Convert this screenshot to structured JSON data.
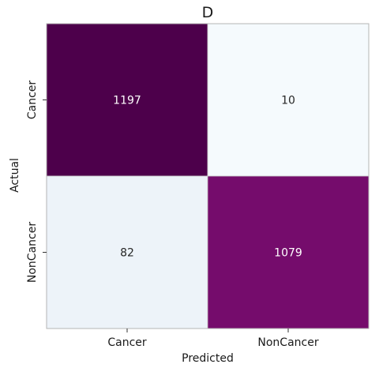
{
  "chart_data": {
    "type": "heatmap",
    "title": "D",
    "xlabel": "Predicted",
    "ylabel": "Actual",
    "x_categories": [
      "Cancer",
      "NonCancer"
    ],
    "y_categories": [
      "Cancer",
      "NonCancer"
    ],
    "values": [
      [
        1197,
        10
      ],
      [
        82,
        1079
      ]
    ],
    "colormap": "BuPu",
    "cell_colors": [
      [
        "#4d004b",
        "#f5fafd"
      ],
      [
        "#edf3f9",
        "#750c6c"
      ]
    ],
    "text_colors": [
      [
        "#ffffff",
        "#262626"
      ],
      [
        "#262626",
        "#ffffff"
      ]
    ],
    "colorbar": false
  }
}
